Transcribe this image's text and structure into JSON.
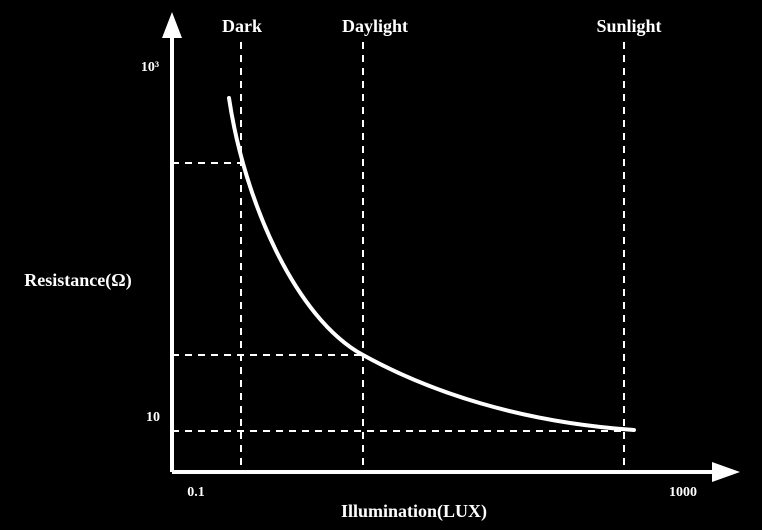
{
  "markers": [
    "Dark",
    "Daylight",
    "Sunlight"
  ],
  "y_axis": {
    "title": "Resistance(Ω)",
    "ticks": [
      "10³",
      "10"
    ]
  },
  "x_axis": {
    "title": "Illumination(LUX)",
    "ticks": [
      "0.1",
      "1000"
    ]
  }
}
